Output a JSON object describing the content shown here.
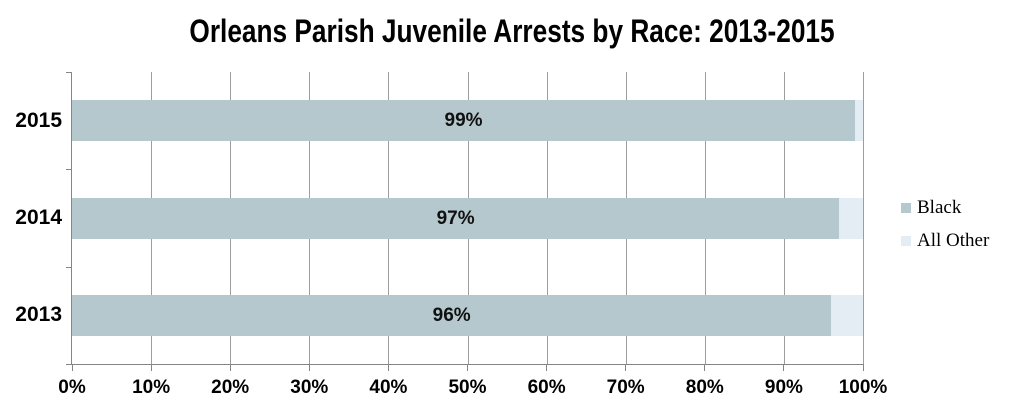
{
  "title": "Orleans Parish Juvenile Arrests by Race: 2013-2015",
  "chart_data": {
    "type": "bar",
    "orientation": "horizontal",
    "stacked": true,
    "title": "Orleans Parish Juvenile Arrests by Race: 2013-2015",
    "categories": [
      "2015",
      "2014",
      "2013"
    ],
    "series": [
      {
        "name": "Black",
        "color": "#b5c8ce",
        "values": [
          99,
          97,
          96
        ]
      },
      {
        "name": "All Other",
        "color": "#e4edf3",
        "values": [
          1,
          3,
          4
        ]
      }
    ],
    "bar_labels": [
      "99%",
      "97%",
      "96%"
    ],
    "x_ticks": [
      "0%",
      "10%",
      "20%",
      "30%",
      "40%",
      "50%",
      "60%",
      "70%",
      "80%",
      "90%",
      "100%"
    ],
    "xlim": [
      0,
      100
    ],
    "xlabel": "",
    "ylabel": "",
    "grid": "vertical",
    "legend_position": "right"
  },
  "legend": {
    "items": [
      {
        "label": "Black",
        "color": "#b5c8ce"
      },
      {
        "label": "All Other",
        "color": "#e4edf3"
      }
    ]
  },
  "colors": {
    "background": "#ffffff",
    "grid": "#9d9d9d",
    "axis": "#858585",
    "text": "#000000"
  }
}
